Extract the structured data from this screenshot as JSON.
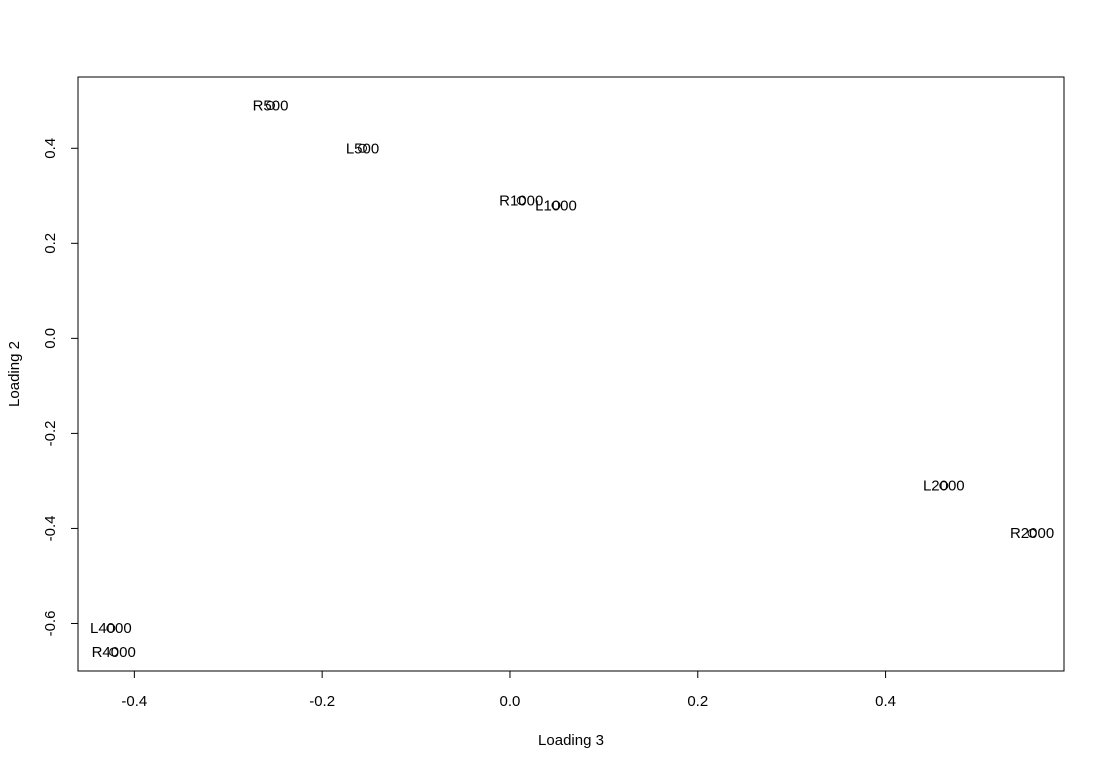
{
  "chart_data": {
    "type": "scatter",
    "title": "",
    "xlabel": "Loading 3",
    "ylabel": "Loading 2",
    "xlim": [
      -0.46,
      0.59
    ],
    "ylim": [
      -0.7,
      0.55
    ],
    "xticks": [
      -0.4,
      -0.2,
      0.0,
      0.2,
      0.4
    ],
    "yticks": [
      -0.6,
      -0.4,
      -0.2,
      0.0,
      0.2,
      0.4
    ],
    "xtick_labels": [
      "-0.4",
      "-0.2",
      "0.0",
      "0.2",
      "0.4"
    ],
    "ytick_labels": [
      "-0.6",
      "-0.4",
      "-0.2",
      "0.0",
      "0.2",
      "0.4"
    ],
    "grid": false,
    "points": [
      {
        "label": "R500",
        "x": -0.255,
        "y": 0.49
      },
      {
        "label": "L500",
        "x": -0.157,
        "y": 0.4
      },
      {
        "label": "R1000",
        "x": 0.012,
        "y": 0.29
      },
      {
        "label": "L1000",
        "x": 0.049,
        "y": 0.28
      },
      {
        "label": "L2000",
        "x": 0.462,
        "y": -0.31
      },
      {
        "label": "R2000",
        "x": 0.556,
        "y": -0.41
      },
      {
        "label": "L4000",
        "x": -0.425,
        "y": -0.61
      },
      {
        "label": "R4000",
        "x": -0.422,
        "y": -0.66
      }
    ]
  }
}
